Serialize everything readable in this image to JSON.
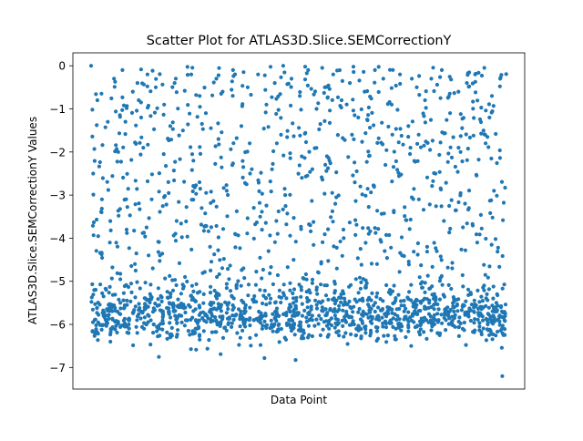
{
  "chart_data": {
    "type": "scatter",
    "title": "Scatter Plot for ATLAS3D.Slice.SEMCorrectionY",
    "xlabel": "Data Point",
    "ylabel": "ATLAS3D.Slice.SEMCorrectionY Values",
    "ylim": [
      -7.5,
      0.3
    ],
    "yticks": [
      0,
      -1,
      -2,
      -3,
      -4,
      -5,
      -6,
      -7
    ],
    "ytick_labels": [
      "0",
      "−1",
      "−2",
      "−3",
      "−4",
      "−5",
      "−6",
      "−7"
    ],
    "x_tick_labels_shown": false,
    "grid": false,
    "legend": "none",
    "marker_color": "#1f77b4",
    "point_count_estimate": 2000,
    "series": [
      {
        "x": [
          0,
          3,
          8,
          11,
          15,
          20,
          24,
          27,
          31,
          35,
          40,
          44,
          48,
          52,
          55,
          60,
          63,
          68,
          72,
          75,
          80,
          84,
          88,
          91,
          96,
          100,
          104,
          108,
          112,
          116,
          120,
          124,
          128,
          131,
          136,
          140,
          144,
          148,
          152,
          156,
          160,
          163,
          168,
          172,
          176,
          180,
          184,
          188,
          192,
          196,
          2,
          6,
          10,
          14,
          18,
          22,
          26,
          30,
          34,
          38,
          42,
          46,
          50,
          54,
          58,
          62,
          66,
          70,
          74,
          78,
          82,
          86,
          90,
          94,
          98,
          102,
          106,
          110,
          114,
          118,
          122,
          126,
          130,
          134,
          138,
          142,
          146,
          150,
          154,
          158,
          162,
          166,
          170,
          174,
          178,
          182,
          186,
          190,
          194,
          198,
          1,
          5,
          9,
          13,
          17,
          21,
          25,
          29,
          33,
          37,
          41,
          45,
          49,
          53,
          57,
          61,
          65,
          69,
          73,
          77,
          81,
          85,
          89,
          93,
          97,
          101,
          105,
          109,
          113,
          117,
          121,
          125,
          129,
          133,
          137,
          141,
          145,
          149,
          153,
          157,
          161,
          165,
          169,
          173,
          177,
          181,
          185,
          189,
          193,
          197
        ],
        "y": [
          0.0,
          -0.8,
          -1.3,
          -0.3,
          -0.1,
          -0.6,
          -1.2,
          -0.2,
          -0.5,
          -0.9,
          -0.4,
          -1.5,
          -0.2,
          -0.7,
          -1.1,
          -0.3,
          -0.6,
          -0.1,
          -1.4,
          -0.5,
          -0.2,
          -0.9,
          -0.4,
          -1.6,
          -0.3,
          -0.7,
          -0.1,
          -1.0,
          -0.5,
          -0.2,
          -0.8,
          -0.4,
          -1.2,
          -0.6,
          -0.1,
          -0.3,
          -0.9,
          -0.2,
          -1.4,
          -0.5,
          -0.8,
          -0.3,
          -0.1,
          -1.1,
          -0.6,
          -0.4,
          -0.2,
          -1.5,
          -0.7,
          -0.3,
          -5.2,
          -5.8,
          -6.1,
          -5.5,
          -6.2,
          -5.9,
          -5.4,
          -6.0,
          -5.7,
          -6.3,
          -5.6,
          -5.9,
          -6.1,
          -5.3,
          -5.8,
          -6.0,
          -5.5,
          -6.2,
          -5.7,
          -5.9,
          -6.1,
          -5.4,
          -5.8,
          -6.0,
          -5.6,
          -6.2,
          -5.9,
          -5.5,
          -6.1,
          -5.7,
          -5.8,
          -6.0,
          -5.4,
          -6.2,
          -5.9,
          -5.6,
          -6.1,
          -5.7,
          -5.8,
          -6.0,
          -5.5,
          -6.2,
          -5.9,
          -5.6,
          -6.1,
          -5.3,
          -5.8,
          -6.0,
          -5.7,
          -5.9,
          -2.5,
          -3.4,
          -4.1,
          -2.0,
          -3.8,
          -4.6,
          -1.9,
          -3.1,
          -4.4,
          -2.7,
          -3.6,
          -4.9,
          -2.2,
          -3.3,
          -4.2,
          -1.7,
          -2.9,
          -3.9,
          -4.7,
          -2.4,
          -3.5,
          -4.3,
          -1.8,
          -3.0,
          -4.5,
          -2.6,
          -3.7,
          -4.8,
          -2.1,
          -3.2,
          -4.0,
          -1.6,
          -2.8,
          -3.9,
          -4.6,
          -2.3,
          -3.4,
          -4.4,
          -1.9,
          -3.1,
          -4.2,
          -2.5,
          -3.6,
          -4.7,
          -2.0,
          -3.3,
          -4.1,
          -1.8,
          -2.9,
          -7.2
        ]
      }
    ]
  }
}
